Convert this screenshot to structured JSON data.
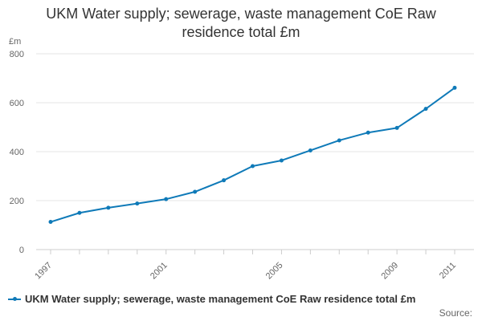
{
  "chart_data": {
    "type": "line",
    "title_line1": "UKM Water supply; sewerage, waste management CoE Raw",
    "title_line2": "residence total £m",
    "ylabel": "£m",
    "ylim": [
      0,
      800
    ],
    "yticks": [
      "0",
      "200",
      "400",
      "600",
      "800"
    ],
    "xlim": [
      1997,
      2011
    ],
    "xticks": [
      "1997",
      "2001",
      "2005",
      "2009",
      "2011"
    ],
    "series": [
      {
        "name": "UKM Water supply; sewerage, waste management CoE Raw residence total £m",
        "color": "#0f7ab8",
        "x": [
          1997,
          1998,
          1999,
          2000,
          2001,
          2002,
          2003,
          2004,
          2005,
          2006,
          2007,
          2008,
          2009,
          2010,
          2011
        ],
        "values": [
          113,
          150,
          171,
          188,
          206,
          236,
          283,
          341,
          364,
          405,
          446,
          478,
          497,
          575,
          661
        ]
      }
    ]
  },
  "footer": {
    "source_label": "Source:"
  }
}
